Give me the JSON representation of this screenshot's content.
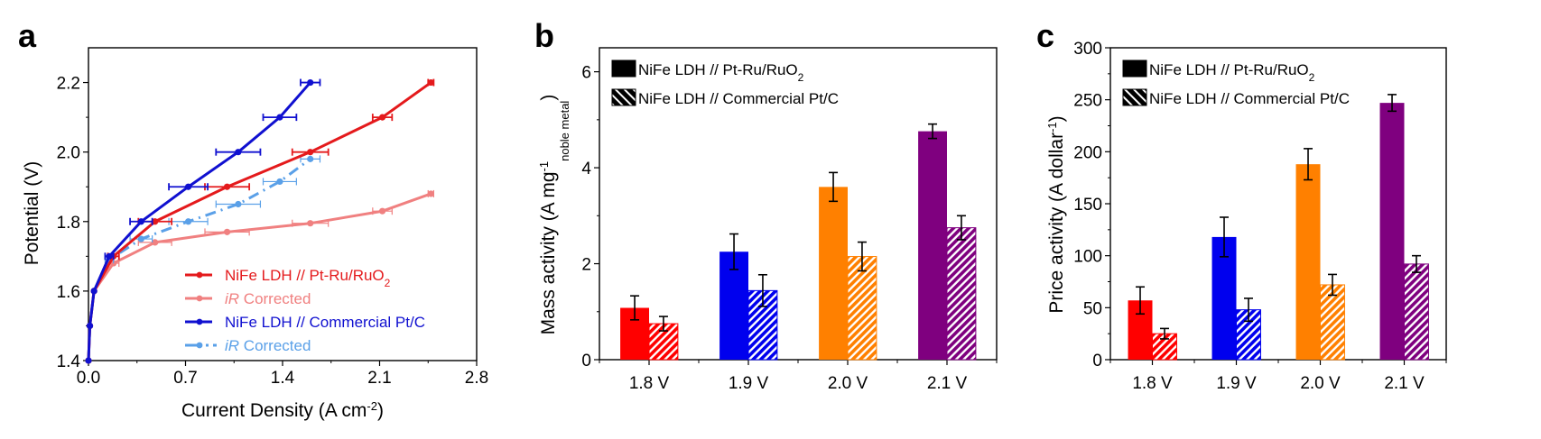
{
  "chart_data": [
    {
      "panel": "a",
      "type": "line",
      "title": "",
      "xlabel": "Current Density (A cm-2)",
      "xlabel_main": "Current Density (A cm",
      "xlabel_sup": "-2",
      "xlabel_end": ")",
      "ylabel": "Potential (V)",
      "xlim": [
        0.0,
        2.8
      ],
      "ylim": [
        1.4,
        2.3
      ],
      "xticks": [
        "0.0",
        "0.7",
        "1.4",
        "2.1",
        "2.8"
      ],
      "xtick_values": [
        0.0,
        0.7,
        1.4,
        2.1,
        2.8
      ],
      "yticks": [
        "1.4",
        "1.6",
        "1.8",
        "2.0",
        "2.2"
      ],
      "ytick_values": [
        1.4,
        1.6,
        1.8,
        2.0,
        2.2
      ],
      "grid": false,
      "legend_position": "bottom-right",
      "series": [
        {
          "name": "NiFe LDH // Pt-Ru/RuO2",
          "legend_main": "NiFe LDH // Pt-Ru/RuO",
          "legend_sub": "2",
          "legend_italic": "",
          "color": "#e41a1c",
          "dashed": false,
          "x": [
            0.0,
            0.01,
            0.04,
            0.18,
            0.48,
            1.0,
            1.6,
            2.12,
            2.47
          ],
          "y": [
            1.4,
            1.5,
            1.6,
            1.7,
            1.8,
            1.9,
            2.0,
            2.1,
            2.2
          ],
          "xerr": [
            0,
            0,
            0,
            0.04,
            0.12,
            0.16,
            0.13,
            0.07,
            0.02
          ]
        },
        {
          "name": "iR Corrected",
          "legend_main": " Corrected",
          "legend_sub": "",
          "legend_italic": "iR",
          "color": "#f08080",
          "dashed": false,
          "x": [
            0.0,
            0.01,
            0.04,
            0.18,
            0.48,
            1.0,
            1.6,
            2.12,
            2.47
          ],
          "y": [
            1.4,
            1.5,
            1.6,
            1.68,
            1.74,
            1.77,
            1.795,
            1.83,
            1.88
          ],
          "xerr": [
            0,
            0,
            0,
            0.04,
            0.12,
            0.16,
            0.13,
            0.07,
            0.02
          ]
        },
        {
          "name": "NiFe LDH // Commercial Pt/C",
          "legend_main": "NiFe LDH // Commercial Pt/C",
          "legend_sub": "",
          "legend_italic": "",
          "color": "#1010d0",
          "dashed": false,
          "x": [
            0.0,
            0.01,
            0.04,
            0.15,
            0.38,
            0.72,
            1.08,
            1.38,
            1.6
          ],
          "y": [
            1.4,
            1.5,
            1.6,
            1.7,
            1.8,
            1.9,
            2.0,
            2.1,
            2.2
          ],
          "xerr": [
            0,
            0,
            0,
            0.03,
            0.08,
            0.14,
            0.16,
            0.12,
            0.07
          ]
        },
        {
          "name": "iR Corrected",
          "legend_main": " Corrected",
          "legend_sub": "",
          "legend_italic": "iR",
          "color": "#5aa0e8",
          "dashed": true,
          "x": [
            0.0,
            0.01,
            0.04,
            0.15,
            0.38,
            0.72,
            1.08,
            1.38,
            1.6
          ],
          "y": [
            1.4,
            1.5,
            1.6,
            1.69,
            1.75,
            1.8,
            1.85,
            1.915,
            1.98
          ],
          "xerr": [
            0,
            0,
            0,
            0.03,
            0.08,
            0.14,
            0.16,
            0.12,
            0.07
          ]
        }
      ]
    },
    {
      "panel": "b",
      "type": "bar",
      "title": "",
      "xlabel": "",
      "ylabel": "Mass activity (A mg-1 noble metal)",
      "ylabel_main": "Mass activity (A mg",
      "ylabel_sup": "-1",
      "ylabel_sub": "noble metal",
      "ylabel_end": ")",
      "ylim": [
        0,
        6.5
      ],
      "yticks": [
        "0",
        "2",
        "4",
        "6"
      ],
      "ytick_values": [
        0,
        2,
        4,
        6
      ],
      "grid": false,
      "legend_position": "top-left",
      "categories": [
        "1.8 V",
        "1.9 V",
        "2.0 V",
        "2.1 V"
      ],
      "category_colors": [
        "#ff0000",
        "#0000ee",
        "#ff8000",
        "#7f007f"
      ],
      "series": [
        {
          "name": "NiFe LDH // Pt-Ru/RuO2",
          "legend_main": "NiFe LDH // Pt-Ru/RuO",
          "legend_sub": "2",
          "pattern": "solid",
          "values": [
            1.08,
            2.25,
            3.6,
            4.76
          ],
          "errors": [
            0.25,
            0.37,
            0.3,
            0.15
          ]
        },
        {
          "name": "NiFe LDH // Commercial Pt/C",
          "legend_main": "NiFe LDH // Commercial Pt/C",
          "legend_sub": "",
          "pattern": "hatched",
          "values": [
            0.75,
            1.44,
            2.15,
            2.75
          ],
          "errors": [
            0.15,
            0.33,
            0.3,
            0.25
          ]
        }
      ]
    },
    {
      "panel": "c",
      "type": "bar",
      "title": "",
      "xlabel": "",
      "ylabel": "Price activity (A dollar-1)",
      "ylabel_main": "Price activity (A dollar",
      "ylabel_sup": "-1",
      "ylabel_sub": "",
      "ylabel_end": ")",
      "ylim": [
        0,
        300
      ],
      "yticks": [
        "0",
        "50",
        "100",
        "150",
        "200",
        "250",
        "300"
      ],
      "ytick_values": [
        0,
        50,
        100,
        150,
        200,
        250,
        300
      ],
      "grid": false,
      "legend_position": "top-left",
      "categories": [
        "1.8 V",
        "1.9 V",
        "2.0 V",
        "2.1 V"
      ],
      "category_colors": [
        "#ff0000",
        "#0000ee",
        "#ff8000",
        "#7f007f"
      ],
      "series": [
        {
          "name": "NiFe LDH // Pt-Ru/RuO2",
          "legend_main": "NiFe LDH // Pt-Ru/RuO",
          "legend_sub": "2",
          "pattern": "solid",
          "values": [
            57,
            118,
            188,
            247
          ],
          "errors": [
            13,
            19,
            15,
            8
          ]
        },
        {
          "name": "NiFe LDH // Commercial Pt/C",
          "legend_main": "NiFe LDH // Commercial Pt/C",
          "legend_sub": "",
          "pattern": "hatched",
          "values": [
            25,
            48,
            72,
            92
          ],
          "errors": [
            5,
            11,
            10,
            8
          ]
        }
      ]
    }
  ]
}
